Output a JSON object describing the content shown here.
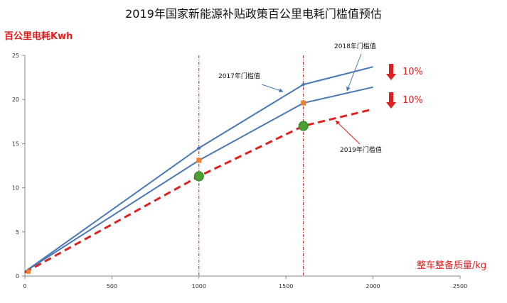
{
  "chart_data": {
    "type": "line",
    "title": "2019年国家新能源补贴政策百公里电耗门槛值预估",
    "ylabel": "百公里电耗Kwh",
    "xlabel": "整车整备质量/kg",
    "xlim": [
      0,
      2500
    ],
    "ylim": [
      0,
      25
    ],
    "x_ticks": [
      0,
      500,
      1000,
      1500,
      2000,
      2500
    ],
    "y_ticks": [
      0,
      5,
      10,
      15,
      20,
      25
    ],
    "grid": false,
    "reference_lines_x": [
      1000,
      1600
    ],
    "series": [
      {
        "name": "2017年门槛值",
        "color": "#4a78b5",
        "style": "solid",
        "marker": "diamond",
        "x": [
          0,
          1000,
          1600,
          2000
        ],
        "y": [
          0.5,
          14.5,
          21.7,
          23.7
        ]
      },
      {
        "name": "2018年门槛值",
        "color": "#4a78b5",
        "style": "solid",
        "marker": "square",
        "marker_color": "#f08030",
        "x": [
          0,
          1000,
          1600,
          2000
        ],
        "y": [
          0.5,
          13.1,
          19.6,
          21.4
        ]
      },
      {
        "name": "2019年门槛值",
        "color": "#e02020",
        "style": "dashed",
        "marker": "circle",
        "marker_color": "#4aa030",
        "x": [
          0,
          1000,
          1600,
          2000
        ],
        "y": [
          0.4,
          11.3,
          17.0,
          18.9
        ]
      }
    ],
    "annotations": [
      {
        "text": "10%",
        "near_series": "2017年门槛值"
      },
      {
        "text": "10%",
        "near_series": "2018年门槛值"
      }
    ]
  }
}
